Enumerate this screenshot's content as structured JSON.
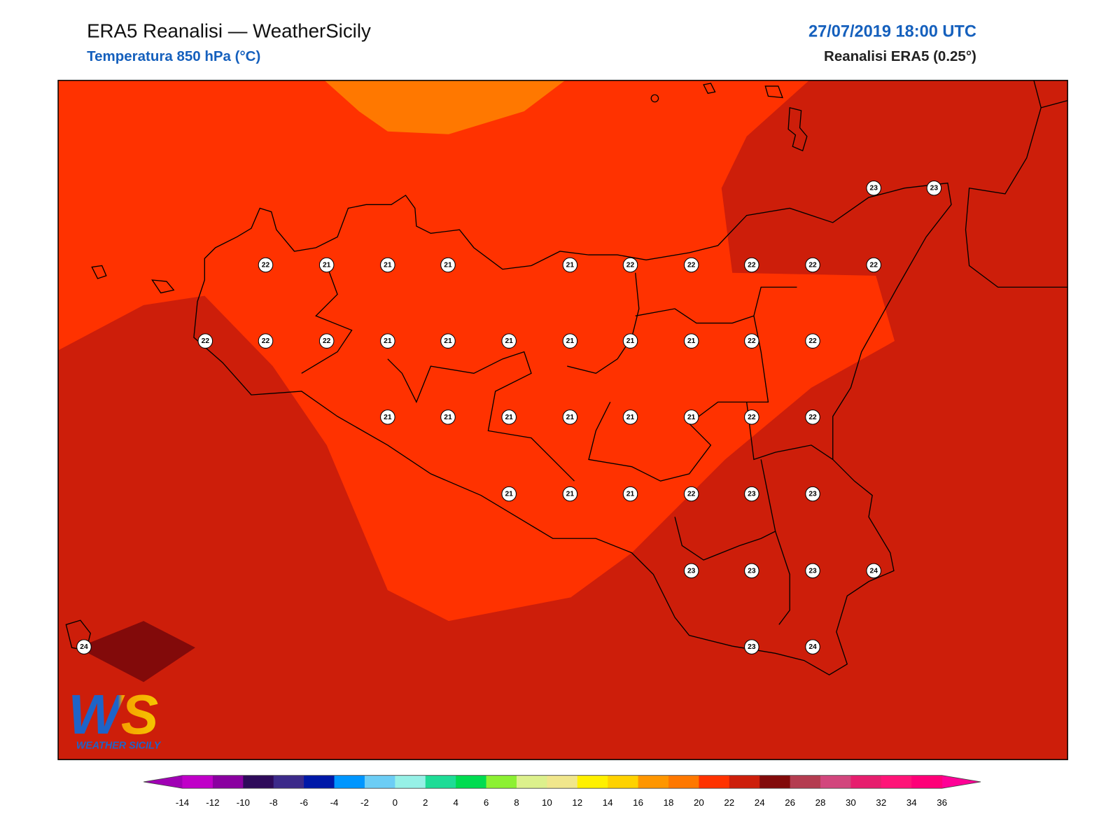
{
  "header": {
    "title": "ERA5 Reanalisi — WeatherSicily",
    "subtitle": "Temperatura 850 hPa (°C)",
    "datetime": "27/07/2019 18:00 UTC",
    "source": "Reanalisi ERA5 (0.25°)"
  },
  "stations": [
    23,
    23,
    22,
    21,
    21,
    21,
    21,
    22,
    22,
    22,
    22,
    22,
    22,
    22,
    22,
    21,
    21,
    21,
    21,
    21,
    21,
    22,
    22,
    21,
    21,
    21,
    21,
    21,
    21,
    22,
    22,
    21,
    21,
    21,
    22,
    23,
    23,
    23,
    23,
    23,
    24,
    24,
    23,
    24
  ],
  "colorbar": {
    "ticks": [
      -14,
      -12,
      -10,
      -8,
      -6,
      -4,
      -2,
      0,
      2,
      4,
      6,
      8,
      10,
      12,
      14,
      16,
      18,
      20,
      22,
      24,
      26,
      28,
      30,
      32,
      34,
      36
    ],
    "colors": [
      "#c000c8",
      "#8a00a0",
      "#2e0a5a",
      "#3c2a8a",
      "#0018a8",
      "#0096ff",
      "#6ccdf5",
      "#96f0e6",
      "#1edc96",
      "#00dc50",
      "#8cf032",
      "#dcf08c",
      "#f0e68c",
      "#fff000",
      "#ffd200",
      "#ff9600",
      "#ff7800",
      "#ff3200",
      "#cd1e0a",
      "#820a0a",
      "#b43c50",
      "#d2467d",
      "#e61e6e",
      "#ff1478",
      "#ff0078"
    ],
    "extend_colors": [
      "#a000b4",
      "#ff0096"
    ]
  },
  "logo": {
    "mark": "WS",
    "text": "WEATHER SICILY"
  }
}
